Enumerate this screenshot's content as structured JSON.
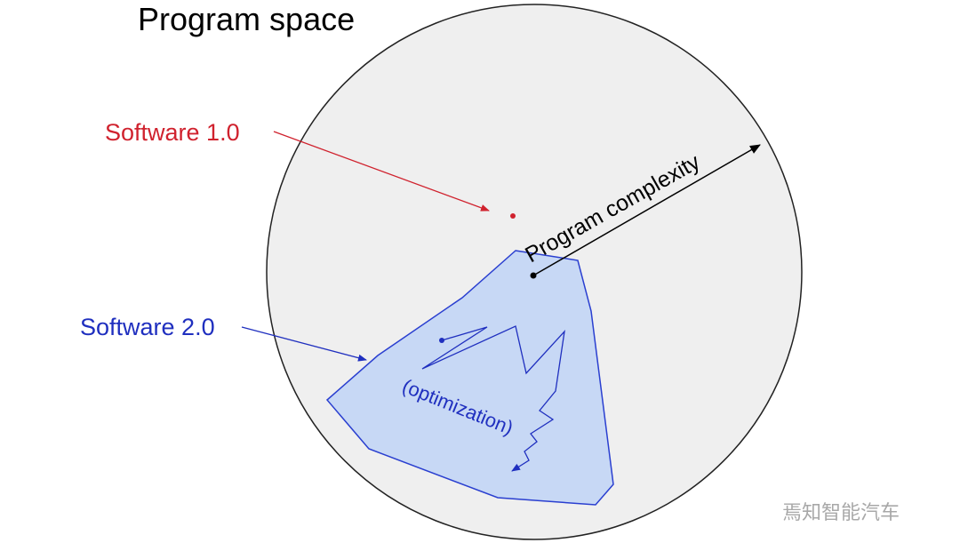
{
  "title": "Program space",
  "labels": {
    "software_1": "Software 1.0",
    "software_2": "Software 2.0",
    "complexity": "Program complexity",
    "optimization": "(optimization)"
  },
  "watermark": "焉知智能汽车"
}
